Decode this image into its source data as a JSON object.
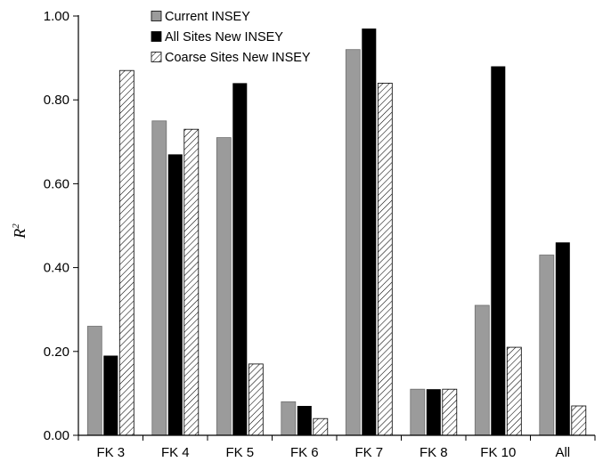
{
  "chart_data": {
    "type": "bar",
    "title": "",
    "xlabel": "",
    "ylabel": "R",
    "ylabel_superscript": "2",
    "ylim": [
      0,
      1.0
    ],
    "yticks": [
      "0.00",
      "0.20",
      "0.40",
      "0.60",
      "0.80",
      "1.00"
    ],
    "categories": [
      "FK 3",
      "FK 4",
      "FK 5",
      "FK 6",
      "FK 7",
      "FK 8",
      "FK 10",
      "All"
    ],
    "series": [
      {
        "name": "Current INSEY",
        "style": "solid",
        "color": "#9b9b9b",
        "values": [
          0.26,
          0.75,
          0.71,
          0.08,
          0.92,
          0.11,
          0.31,
          0.43
        ]
      },
      {
        "name": "All Sites New INSEY",
        "style": "solid",
        "color": "#000000",
        "values": [
          0.19,
          0.67,
          0.84,
          0.07,
          0.97,
          0.11,
          0.88,
          0.46
        ]
      },
      {
        "name": "Coarse Sites New INSEY",
        "style": "hatch",
        "color": "#ffffff",
        "values": [
          0.87,
          0.73,
          0.17,
          0.04,
          0.84,
          0.11,
          0.21,
          0.07
        ]
      }
    ],
    "legend_position": "top-left",
    "grid": false
  }
}
